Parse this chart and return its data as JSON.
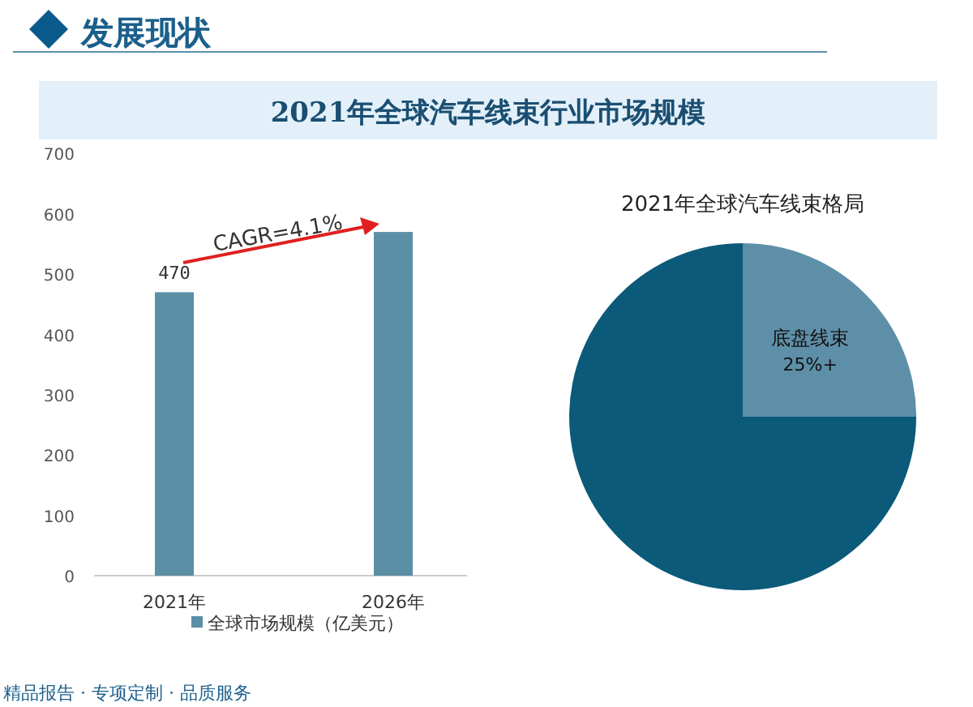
{
  "chart_data": [
    {
      "type": "bar",
      "title": "2021年全球汽车线束行业市场规模",
      "categories": [
        "2021年",
        "2026年"
      ],
      "series": [
        {
          "name": "全球市场规模（亿美元）",
          "color": "#5b8fa6",
          "values": [
            470,
            570
          ],
          "value_labels": [
            "470",
            null
          ]
        }
      ],
      "ylim": [
        0,
        700
      ],
      "yticks": [
        0,
        100,
        200,
        300,
        400,
        500,
        600,
        700
      ],
      "legend": "bottom",
      "annotations": [
        "CAGR=4.1%",
        "发展现状",
        "精品报告 · 专项定制 · 品质服务"
      ]
    },
    {
      "type": "pie",
      "title": "2021年全球汽车线束格局",
      "categories": [
        "底盘线束",
        null
      ],
      "values": [
        25,
        75
      ],
      "value_labels": [
        "25%+",
        null
      ],
      "colors": [
        "#5e8fa8",
        "#0b5a7a"
      ]
    }
  ]
}
